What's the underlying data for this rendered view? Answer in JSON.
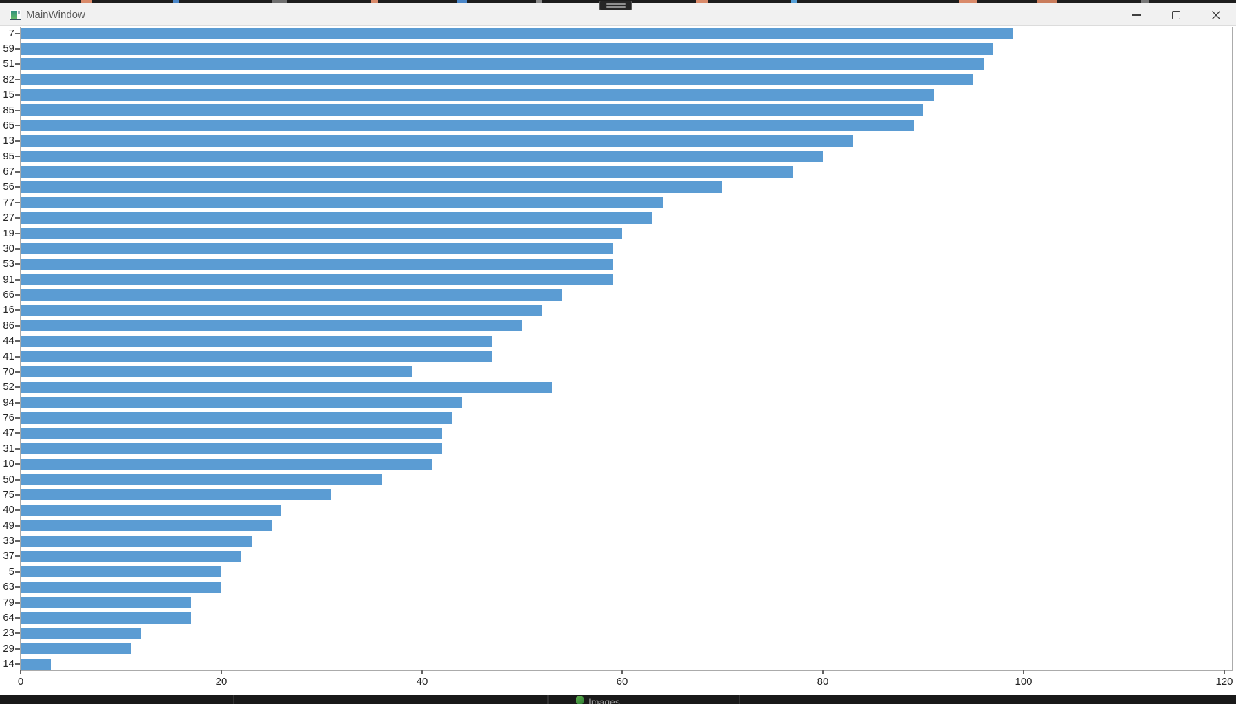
{
  "window": {
    "title": "MainWindow",
    "icons": {
      "app_icon": "teal-window-icon",
      "minimize_icon": "–",
      "maximize_icon": "▢",
      "close_icon": "✕"
    }
  },
  "chart_data": {
    "type": "bar",
    "orientation": "horizontal",
    "title": "",
    "xlabel": "",
    "ylabel": "",
    "grid": false,
    "legend": null,
    "bar_color": "#5B9CD3",
    "axis_color": "#ababab",
    "tick_label_color": "#262626",
    "x_ticks": [
      0,
      20,
      40,
      60,
      80,
      100,
      120
    ],
    "xlim": [
      0,
      120.8
    ],
    "categories": [
      "7",
      "59",
      "51",
      "82",
      "15",
      "85",
      "65",
      "13",
      "95",
      "67",
      "56",
      "77",
      "27",
      "19",
      "30",
      "53",
      "91",
      "66",
      "16",
      "86",
      "44",
      "41",
      "70",
      "52",
      "94",
      "76",
      "47",
      "31",
      "10",
      "50",
      "75",
      "40",
      "49",
      "33",
      "37",
      "5",
      "63",
      "79",
      "64",
      "23",
      "29",
      "14"
    ],
    "values": [
      99,
      97,
      96,
      95,
      91,
      90,
      89,
      83,
      80,
      77,
      70,
      64,
      63,
      60,
      59,
      59,
      59,
      54,
      52,
      50,
      47,
      47,
      39,
      53,
      44,
      43,
      42,
      42,
      41,
      36,
      31,
      26,
      25,
      23,
      22,
      20,
      20,
      17,
      17,
      12,
      11,
      3
    ]
  },
  "background": {
    "share_handle_icon": "drag-handle",
    "taskbar_item_label": "Images",
    "taskbar_item_icon": "green-app-icon"
  }
}
